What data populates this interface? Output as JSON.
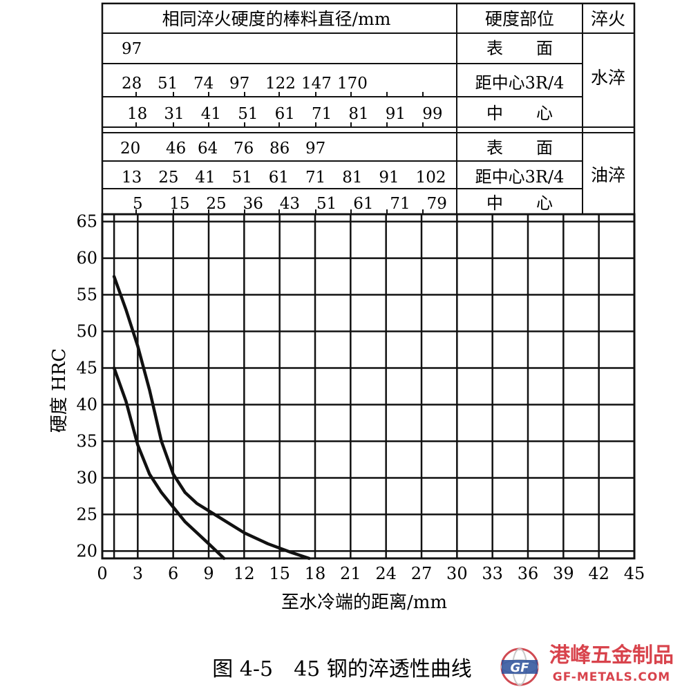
{
  "table": {
    "header_diameter": "相同淬火硬度的棒料直径/mm",
    "header_position": "硬度部位",
    "header_quench": "淬火",
    "water_label": "水淬",
    "oil_label": "油淬",
    "rows": [
      {
        "position": "表　　面",
        "values": [
          "97"
        ]
      },
      {
        "position": "距中心3R/4",
        "values": [
          "28",
          "51",
          "74",
          "97",
          "122",
          "147",
          "170"
        ]
      },
      {
        "position": "中　　心",
        "values": [
          "18",
          "31",
          "41",
          "51",
          "61",
          "71",
          "81",
          "91",
          "99"
        ]
      },
      {
        "position": "表　　面",
        "values": [
          "20",
          "46",
          "64",
          "76",
          "86",
          "97"
        ]
      },
      {
        "position": "距中心3R/4",
        "values": [
          "13",
          "25",
          "41",
          "51",
          "61",
          "71",
          "81",
          "91",
          "102"
        ]
      },
      {
        "position": "中　　心",
        "values": [
          "5",
          "15",
          "25",
          "36",
          "43",
          "51",
          "61",
          "71",
          "79"
        ]
      }
    ]
  },
  "chart_data": {
    "type": "line",
    "title": "图 4-5　45 钢的淬透性曲线",
    "xlabel": "至水冷端的距离/mm",
    "ylabel": "硬度 HRC",
    "xlim": [
      0,
      45
    ],
    "ylim": [
      19,
      66
    ],
    "xticks": [
      "0",
      "3",
      "6",
      "9",
      "12",
      "15",
      "18",
      "21",
      "24",
      "27",
      "30",
      "33",
      "36",
      "39",
      "42",
      "45"
    ],
    "yticks": [
      "20",
      "25",
      "30",
      "35",
      "40",
      "45",
      "50",
      "55",
      "60",
      "65"
    ],
    "grid": true,
    "series": [
      {
        "x": [
          1,
          2,
          3,
          4,
          5,
          6,
          7,
          8,
          10,
          12,
          14,
          16,
          17.5
        ],
        "y": [
          57.5,
          53,
          48,
          42,
          35,
          30.5,
          28,
          26.5,
          24.5,
          22.5,
          21,
          19.8,
          19
        ]
      },
      {
        "x": [
          1,
          2,
          3,
          4,
          5,
          6,
          7,
          8,
          9,
          10.3
        ],
        "y": [
          45,
          40.5,
          34.5,
          30.5,
          28,
          26,
          24,
          22.5,
          21,
          19
        ]
      }
    ]
  },
  "watermark": {
    "logo_text": "GF",
    "brand": "港峰五金制品",
    "site": "GF-METALS.COM"
  }
}
